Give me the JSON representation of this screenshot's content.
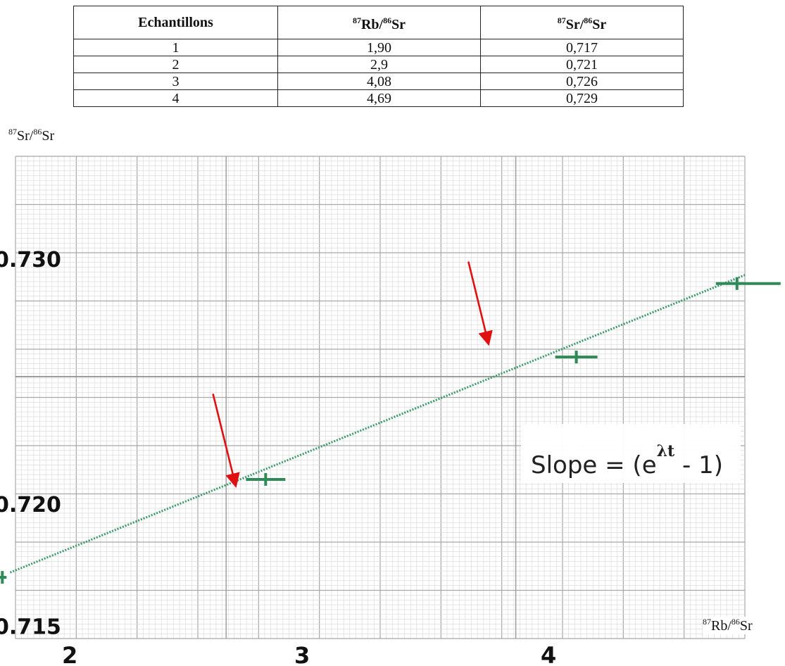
{
  "table": {
    "headers": [
      {
        "pre": "",
        "iso1": "",
        "mid": "Echantillons",
        "iso2": "",
        "post": ""
      },
      {
        "pre": "",
        "iso1": "87",
        "mid": "Rb/",
        "iso2": "86",
        "post": "Sr"
      },
      {
        "pre": "",
        "iso1": "87",
        "mid": "Sr/",
        "iso2": "86",
        "post": "Sr"
      }
    ],
    "rows": [
      [
        "1",
        "1,90",
        "0,717"
      ],
      [
        "2",
        "2,9",
        "0,721"
      ],
      [
        "3",
        "4,08",
        "0,726"
      ],
      [
        "4",
        "4,69",
        "0,729"
      ]
    ]
  },
  "chart_data": {
    "type": "scatter",
    "x": [
      1.9,
      2.9,
      4.08,
      4.69
    ],
    "y": [
      0.717,
      0.721,
      0.726,
      0.729
    ],
    "xlabel": {
      "iso1": "87",
      "a": "Rb/",
      "iso2": "86",
      "b": "Sr"
    },
    "ylabel": {
      "iso1": "87",
      "a": "Sr/",
      "iso2": "86",
      "b": "Sr"
    },
    "x_ticks": [
      2,
      3,
      4
    ],
    "y_ticks": [
      {
        "value": 0.73,
        "label": "0.730"
      },
      {
        "value": 0.72,
        "label": "0.720"
      },
      {
        "value": 0.715,
        "label": "0.715"
      }
    ],
    "xlim": [
      1.95,
      4.72
    ],
    "ylim": [
      0.7145,
      0.7342
    ],
    "fit_line": {
      "x": [
        1.93,
        4.72
      ],
      "y": [
        0.7172,
        0.72935
      ]
    },
    "annotation": {
      "text_before": "Slope = (e",
      "superscript": "λt",
      "text_after": " - 1)"
    },
    "colors": {
      "points": "#2e8b57",
      "fit_line": "#3a9a6a",
      "arrows": "#e01010",
      "grid_minor": "#d6d6d6",
      "grid_major": "#a8a8a8"
    }
  }
}
